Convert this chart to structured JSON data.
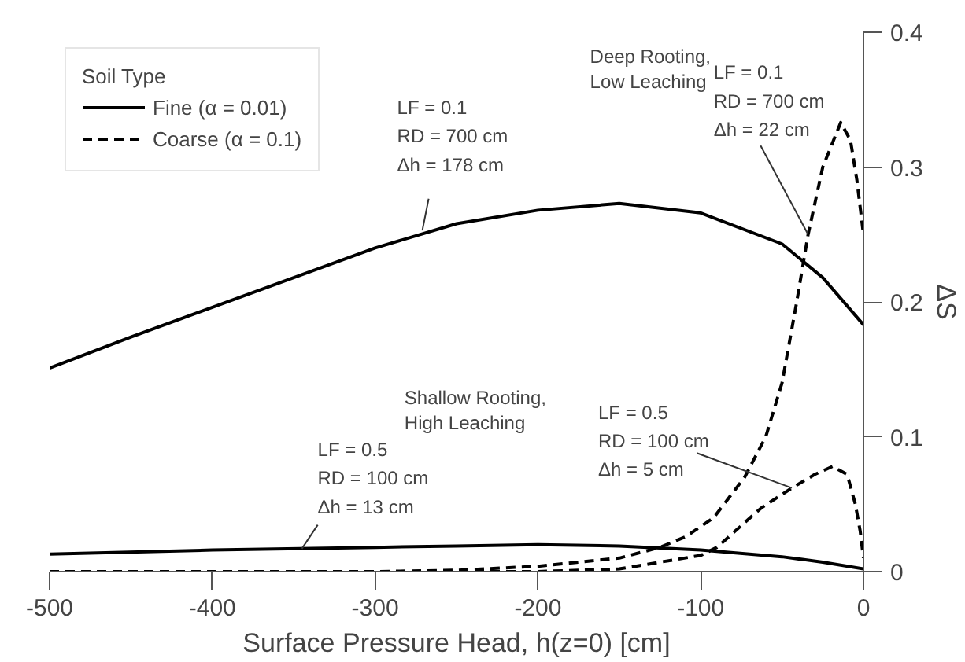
{
  "chart_data": {
    "type": "line",
    "xlabel": "Surface Pressure Head, h(z=0) [cm]",
    "ylabel": "ΔS",
    "legend_title": "Soil Type",
    "xlim": [
      -500,
      0
    ],
    "ylim": [
      0,
      0.4
    ],
    "xticks": [
      -500,
      -400,
      -300,
      -200,
      -100,
      0
    ],
    "yticks": [
      0,
      0.1,
      0.2,
      0.3,
      0.4
    ],
    "grid": false,
    "legend": "top left",
    "marker": "none",
    "series": [
      {
        "name": "Fine (α = 0.01)",
        "color": "#000000",
        "line_style": "solid",
        "x": [
          -500,
          -450,
          -400,
          -350,
          -300,
          -250,
          -200,
          -150,
          -100,
          -50,
          -25,
          0
        ],
        "values": [
          0.151,
          0.174,
          0.196,
          0.218,
          0.24,
          0.258,
          0.268,
          0.273,
          0.266,
          0.243,
          0.218,
          0.183
        ]
      },
      {
        "color": "#000000",
        "line_style": "solid",
        "x": [
          -500,
          -400,
          -300,
          -250,
          -200,
          -150,
          -100,
          -50,
          -25,
          0
        ],
        "values": [
          0.013,
          0.016,
          0.018,
          0.019,
          0.02,
          0.019,
          0.016,
          0.011,
          0.007,
          0.002
        ]
      },
      {
        "name": "Coarse (α = 0.1)",
        "color": "#000000",
        "line_style": "dashed",
        "x": [
          -500,
          -300,
          -250,
          -200,
          -150,
          -125,
          -109,
          -92,
          -73,
          -60,
          -50,
          -41,
          -34,
          -25,
          -14,
          -8,
          -4,
          0
        ],
        "values": [
          0,
          0,
          0.001,
          0.004,
          0.01,
          0.018,
          0.026,
          0.04,
          0.07,
          0.1,
          0.14,
          0.2,
          0.25,
          0.3,
          0.333,
          0.32,
          0.29,
          0.25
        ]
      },
      {
        "color": "#000000",
        "line_style": "dashed",
        "x": [
          -500,
          -200,
          -150,
          -100,
          -90,
          -63,
          -44,
          -30,
          -19,
          -10,
          -5,
          -2,
          0
        ],
        "values": [
          0,
          0,
          0.002,
          0.012,
          0.018,
          0.047,
          0.062,
          0.072,
          0.078,
          0.072,
          0.05,
          0.03,
          0.01
        ]
      }
    ],
    "annotations": [
      {
        "text": "LF = 0.1\nRD = 700 cm\nΔh = 178 cm",
        "x": -271,
        "y": 0.253
      },
      {
        "text": "LF = 0.1\nRD = 700 cm\nΔh = 22 cm",
        "x": -34,
        "y": 0.25
      },
      {
        "text": "LF = 0.5\nRD = 100 cm\nΔh = 5 cm",
        "x": -44,
        "y": 0.062
      },
      {
        "text": "LF = 0.5\nRD = 100 cm\nΔh = 13 cm",
        "x": -345,
        "y": 0.017
      },
      "Deep Rooting,\nLow Leaching",
      "Shallow Rooting,\nHigh Leaching"
    ]
  }
}
